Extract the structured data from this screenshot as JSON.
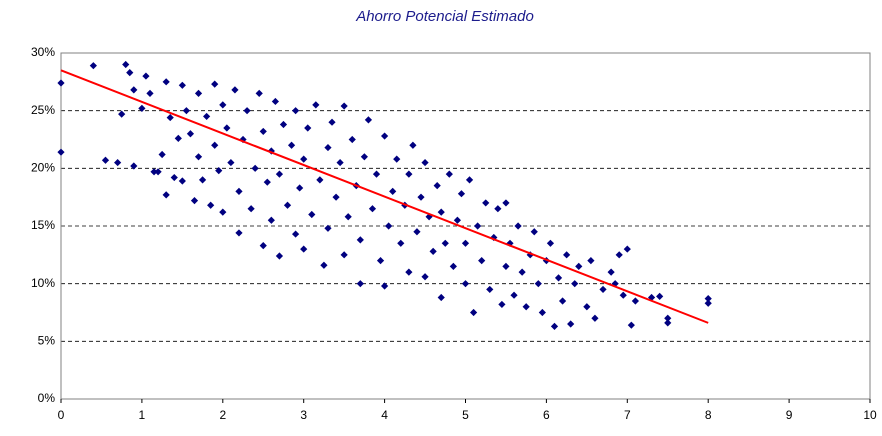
{
  "chart_data": {
    "type": "scatter",
    "title": "Ahorro Potencial Estimado",
    "xlim": [
      0,
      10
    ],
    "xticks": [
      0,
      1,
      2,
      3,
      4,
      5,
      6,
      7,
      8,
      9,
      10
    ],
    "ylim": [
      0,
      30
    ],
    "yticks": [
      {
        "value": 0,
        "label": "0%"
      },
      {
        "value": 5,
        "label": "5%"
      },
      {
        "value": 10,
        "label": "10%"
      },
      {
        "value": 15,
        "label": "15%"
      },
      {
        "value": 20,
        "label": "20%"
      },
      {
        "value": 25,
        "label": "25%"
      },
      {
        "value": 30,
        "label": "30%"
      }
    ],
    "grid": true,
    "series": [
      {
        "color": "#000080",
        "x": [
          0,
          0,
          0.4,
          0.55,
          0.7,
          0.75,
          0.8,
          0.85,
          0.9,
          0.9,
          1.0,
          1.05,
          1.1,
          1.15,
          1.2,
          1.25,
          1.3,
          1.3,
          1.35,
          1.4,
          1.45,
          1.5,
          1.5,
          1.55,
          1.6,
          1.65,
          1.7,
          1.7,
          1.75,
          1.8,
          1.85,
          1.9,
          1.9,
          1.95,
          2.0,
          2.0,
          2.05,
          2.1,
          2.15,
          2.2,
          2.2,
          2.25,
          2.3,
          2.35,
          2.4,
          2.45,
          2.5,
          2.5,
          2.55,
          2.6,
          2.6,
          2.65,
          2.7,
          2.7,
          2.75,
          2.8,
          2.85,
          2.9,
          2.9,
          2.95,
          3.0,
          3.0,
          3.05,
          3.1,
          3.15,
          3.2,
          3.25,
          3.3,
          3.3,
          3.35,
          3.4,
          3.45,
          3.5,
          3.5,
          3.55,
          3.6,
          3.65,
          3.7,
          3.7,
          3.75,
          3.8,
          3.85,
          3.9,
          3.95,
          4.0,
          4.0,
          4.05,
          4.1,
          4.15,
          4.2,
          4.25,
          4.3,
          4.3,
          4.35,
          4.4,
          4.45,
          4.5,
          4.5,
          4.55,
          4.6,
          4.65,
          4.7,
          4.7,
          4.75,
          4.8,
          4.85,
          4.9,
          4.95,
          5.0,
          5.0,
          5.05,
          5.1,
          5.15,
          5.2,
          5.25,
          5.3,
          5.35,
          5.4,
          5.45,
          5.5,
          5.5,
          5.55,
          5.6,
          5.65,
          5.7,
          5.75,
          5.8,
          5.85,
          5.9,
          5.95,
          6.0,
          6.05,
          6.1,
          6.15,
          6.2,
          6.25,
          6.3,
          6.35,
          6.4,
          6.5,
          6.55,
          6.6,
          6.7,
          6.8,
          6.85,
          6.9,
          6.95,
          7.0,
          7.05,
          7.1,
          7.3,
          7.4,
          7.5,
          7.5,
          8.0,
          8.0
        ],
        "values": [
          27.4,
          21.4,
          28.9,
          20.7,
          20.5,
          24.7,
          29.0,
          28.3,
          26.8,
          20.2,
          25.2,
          28.0,
          26.5,
          19.7,
          19.7,
          21.2,
          17.7,
          27.5,
          24.4,
          19.2,
          22.6,
          27.2,
          18.9,
          25.0,
          23.0,
          17.2,
          26.5,
          21.0,
          19.0,
          24.5,
          16.8,
          27.3,
          22.0,
          19.8,
          25.5,
          16.2,
          23.5,
          20.5,
          26.8,
          14.4,
          18.0,
          22.5,
          25.0,
          16.5,
          20.0,
          26.5,
          13.3,
          23.2,
          18.8,
          15.5,
          21.5,
          25.8,
          12.4,
          19.5,
          23.8,
          16.8,
          22.0,
          14.3,
          25.0,
          18.3,
          20.8,
          13.0,
          23.5,
          16.0,
          25.5,
          19.0,
          11.6,
          21.8,
          14.8,
          24.0,
          17.5,
          20.5,
          12.5,
          25.4,
          15.8,
          22.5,
          18.5,
          10.0,
          13.8,
          21.0,
          24.2,
          16.5,
          19.5,
          12.0,
          22.8,
          9.8,
          15.0,
          18.0,
          20.8,
          13.5,
          16.8,
          11.0,
          19.5,
          22.0,
          14.5,
          17.5,
          10.6,
          20.5,
          15.8,
          12.8,
          18.5,
          8.8,
          16.2,
          13.5,
          19.5,
          11.5,
          15.5,
          17.8,
          10.0,
          13.5,
          19.0,
          7.5,
          15.0,
          12.0,
          17.0,
          9.5,
          14.0,
          16.5,
          8.2,
          11.5,
          17.0,
          13.5,
          9.0,
          15.0,
          11.0,
          8.0,
          12.5,
          14.5,
          10.0,
          7.5,
          12.0,
          13.5,
          6.3,
          10.5,
          8.5,
          12.5,
          6.5,
          10.0,
          11.5,
          8.0,
          12.0,
          7.0,
          9.5,
          11.0,
          10.0,
          12.5,
          9.0,
          13.0,
          6.4,
          8.5,
          8.8,
          8.9,
          6.6,
          7.0,
          8.7,
          8.3
        ]
      }
    ],
    "trendline": {
      "color": "#ff0000",
      "x": [
        0,
        8
      ],
      "values": [
        28.5,
        6.6
      ]
    }
  }
}
